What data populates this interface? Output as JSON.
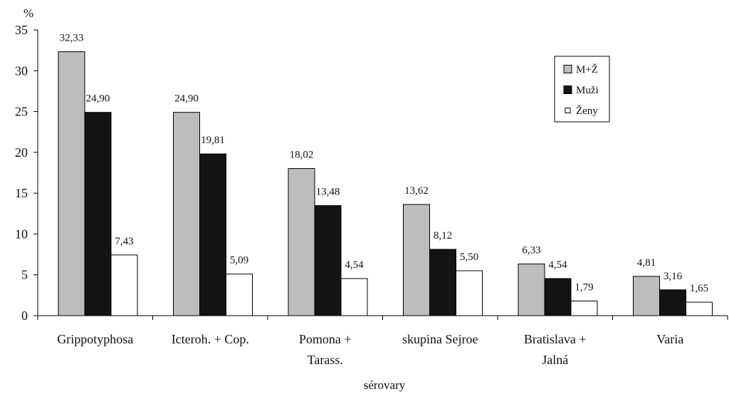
{
  "chart_data": {
    "type": "bar",
    "ylabel": "%",
    "xlabel": "sérovary",
    "ylim": [
      0,
      35
    ],
    "yticks": [
      0,
      5,
      10,
      15,
      20,
      25,
      30,
      35
    ],
    "grid": false,
    "legend_position": "top-right",
    "categories": [
      [
        "Grippotyphosa"
      ],
      [
        "Icteroh. + Cop."
      ],
      [
        "Pomona +",
        "Tarass."
      ],
      [
        "skupina Sejroe"
      ],
      [
        "Bratislava +",
        "Jalná"
      ],
      [
        "Varia"
      ]
    ],
    "series": [
      {
        "name": "M+Ž",
        "color": "#bdbdbd",
        "values": [
          32.33,
          24.9,
          18.02,
          13.62,
          6.33,
          4.81
        ],
        "labels": [
          "32,33",
          "24,90",
          "18,02",
          "13,62",
          "6,33",
          "4,81"
        ]
      },
      {
        "name": "Muži",
        "color": "#141414",
        "values": [
          24.9,
          19.81,
          13.48,
          8.12,
          4.54,
          3.16
        ],
        "labels": [
          "24,90",
          "19,81",
          "13,48",
          "8,12",
          "4,54",
          "3,16"
        ]
      },
      {
        "name": "Ženy",
        "color": "#ffffff",
        "values": [
          7.43,
          5.09,
          4.54,
          5.5,
          1.79,
          1.65
        ],
        "labels": [
          "7,43",
          "5,09",
          "4,54",
          "5,50",
          "1,79",
          "1,65"
        ]
      }
    ]
  }
}
